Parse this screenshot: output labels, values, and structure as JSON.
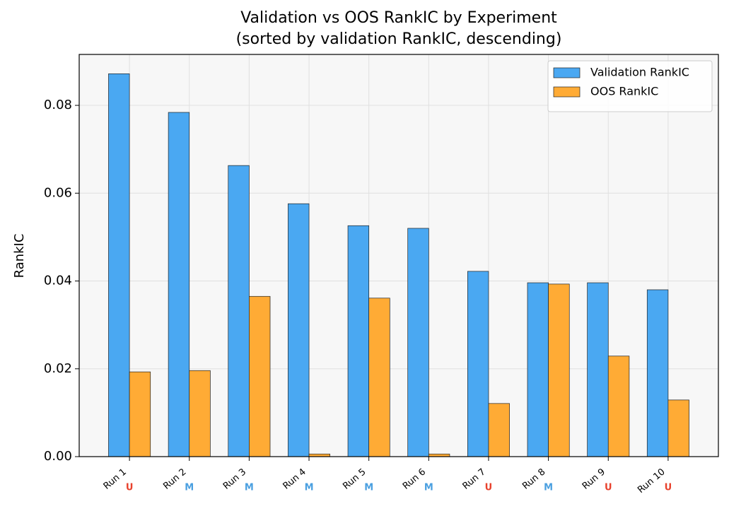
{
  "chart_data": {
    "type": "bar",
    "title": "Validation vs OOS RankIC by Experiment",
    "subtitle": "(sorted by validation RankIC, descending)",
    "y_label": "RankIC",
    "categories": [
      "Run 1",
      "Run 2",
      "Run 3",
      "Run 4",
      "Run 5",
      "Run 6",
      "Run 7",
      "Run 8",
      "Run 9",
      "Run 10"
    ],
    "markers": [
      "U",
      "M",
      "M",
      "M",
      "M",
      "M",
      "U",
      "M",
      "U",
      "U"
    ],
    "marker_colors": {
      "U": "#e8412c",
      "M": "#4a9fe0"
    },
    "series": [
      {
        "name": "Validation RankIC",
        "color": "#4aa8f2",
        "values": [
          0.0872,
          0.0784,
          0.0663,
          0.0576,
          0.0526,
          0.052,
          0.0422,
          0.0396,
          0.0396,
          0.038
        ]
      },
      {
        "name": "OOS RankIC",
        "color": "#ffab35",
        "values": [
          0.0193,
          0.0196,
          0.0365,
          0.0006,
          0.0361,
          0.0006,
          0.0121,
          0.0393,
          0.0229,
          0.0129
        ]
      }
    ],
    "ylim": [
      0,
      0.0916
    ],
    "yticks": [
      {
        "value": 0,
        "label": "0.00"
      },
      {
        "value": 0.02,
        "label": "0.02"
      },
      {
        "value": 0.04,
        "label": "0.04"
      },
      {
        "value": 0.06,
        "label": "0.06"
      },
      {
        "value": 0.08,
        "label": "0.08"
      }
    ],
    "grid": true,
    "legend": "upper right"
  }
}
